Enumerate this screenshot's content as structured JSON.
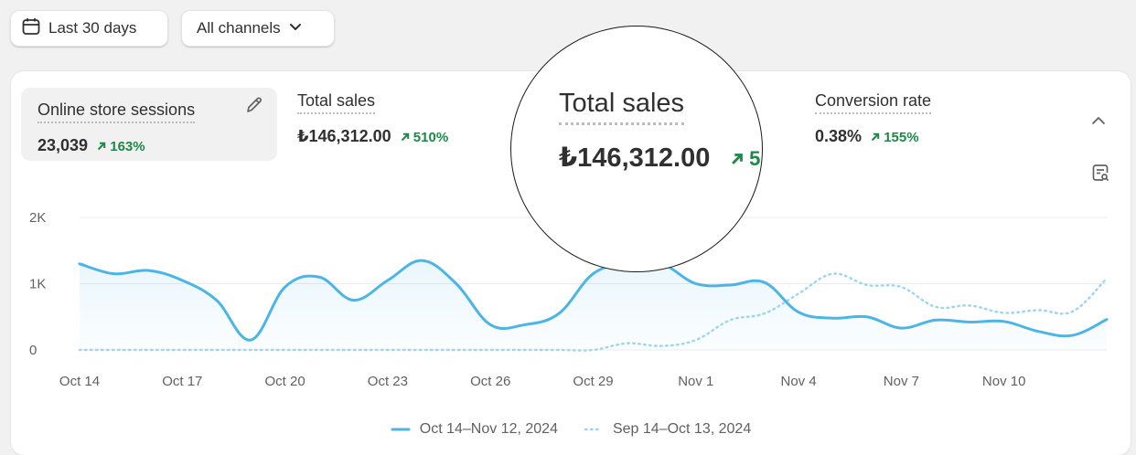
{
  "filters": {
    "date_range_label": "Last 30 days",
    "channels_label": "All channels"
  },
  "metrics": [
    {
      "title": "Online store sessions",
      "value": "23,039",
      "change": "163%"
    },
    {
      "title": "Total sales",
      "value": "₺146,312.00",
      "change": "510%"
    },
    {
      "title": "Conversion rate",
      "value": "0.38%",
      "change": "155%"
    }
  ],
  "magnifier": {
    "title": "Total sales",
    "value": "₺146,312.00",
    "change": "5"
  },
  "icons": {
    "calendar": "calendar-icon",
    "chevron_down": "chevron-down-icon",
    "edit": "pencil-icon",
    "collapse": "chevron-up-icon",
    "doc_search": "document-search-icon",
    "trend_up": "arrow-up-right-icon"
  },
  "colors": {
    "primary_series": "#4bb5e6",
    "comparison_series": "#9ed6f0",
    "positive_change": "#1a8a46"
  },
  "chart_data": {
    "type": "line",
    "y_ticks": [
      "2K",
      "1K",
      "0"
    ],
    "ylim": [
      0,
      2000
    ],
    "x_ticks": [
      "Oct 14",
      "Oct 17",
      "Oct 20",
      "Oct 23",
      "Oct 26",
      "Oct 29",
      "Nov 1",
      "Nov 4",
      "Nov 7",
      "Nov 10"
    ],
    "grid": true,
    "legend_position": "bottom-center",
    "series": [
      {
        "name": "Oct 14–Nov 12, 2024",
        "style": "solid",
        "values": [
          1300,
          1150,
          1200,
          1050,
          750,
          150,
          950,
          1100,
          750,
          1050,
          1350,
          1000,
          380,
          380,
          550,
          1150,
          1300,
          1300,
          1000,
          980,
          1020,
          570,
          480,
          500,
          330,
          450,
          420,
          430,
          280,
          220,
          460
        ]
      },
      {
        "name": "Sep 14–Oct 13, 2024",
        "style": "dotted",
        "values": [
          0,
          0,
          0,
          0,
          0,
          0,
          0,
          0,
          0,
          0,
          0,
          0,
          0,
          0,
          0,
          0,
          100,
          60,
          150,
          450,
          550,
          850,
          1150,
          980,
          950,
          650,
          670,
          560,
          600,
          580,
          1080
        ]
      }
    ]
  }
}
